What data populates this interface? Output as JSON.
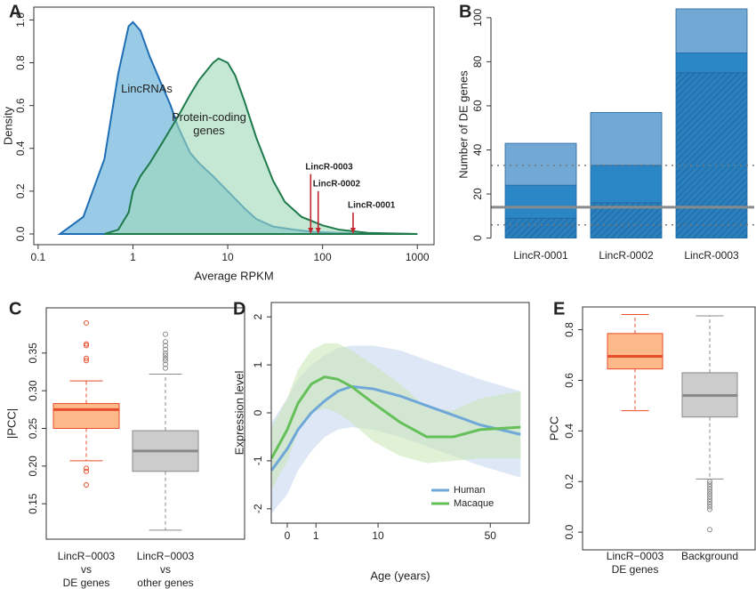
{
  "chart_data": [
    {
      "panel": "A",
      "type": "area",
      "x_label": "Average RPKM",
      "y_label": "Density",
      "frame": true,
      "x_scale": "log",
      "xlim": [
        0.09,
        1500
      ],
      "ylim": [
        -0.05,
        1.06
      ],
      "xticks": [
        0.1,
        1,
        10,
        100,
        1000
      ],
      "yticks": [
        {
          "value": 0,
          "label": "0.0"
        },
        0.2,
        0.4,
        0.6,
        0.8,
        {
          "value": 1,
          "label": "1.0"
        }
      ],
      "series": [
        {
          "name": "LincRNAs",
          "color": "#1f6eb5",
          "fill": "#8ec5e3",
          "x": [
            0.17,
            0.3,
            0.5,
            0.7,
            0.9,
            1,
            1.2,
            1.5,
            2,
            2.5,
            3,
            4,
            5,
            7,
            10,
            15,
            20,
            30,
            50,
            80,
            150,
            300,
            1000
          ],
          "values": [
            0,
            0.08,
            0.35,
            0.75,
            0.97,
            0.99,
            0.95,
            0.83,
            0.7,
            0.6,
            0.5,
            0.38,
            0.33,
            0.27,
            0.2,
            0.12,
            0.07,
            0.035,
            0.02,
            0.01,
            0.005,
            0.002,
            0
          ]
        },
        {
          "name": "Protein-coding genes",
          "color": "#1e7a4a",
          "fill": "#9fd8b8",
          "x": [
            0.5,
            0.7,
            0.9,
            1,
            1.2,
            1.5,
            2,
            3,
            4,
            5,
            7,
            8,
            10,
            12,
            15,
            20,
            30,
            40,
            60,
            100,
            150,
            300,
            1000
          ],
          "values": [
            0,
            0.02,
            0.1,
            0.2,
            0.27,
            0.33,
            0.42,
            0.55,
            0.65,
            0.72,
            0.8,
            0.82,
            0.8,
            0.74,
            0.62,
            0.45,
            0.25,
            0.15,
            0.08,
            0.04,
            0.02,
            0.005,
            0
          ]
        }
      ],
      "annotations": [
        {
          "text": "LincR-0003",
          "x": 75,
          "y": 0.28
        },
        {
          "text": "LincR-0002",
          "x": 90,
          "y": 0.2
        },
        {
          "text": "LincR-0001",
          "x": 210,
          "y": 0.1
        }
      ]
    },
    {
      "panel": "B",
      "type": "stacked_bar",
      "y_label": "Number of DE genes",
      "ylim": [
        -3,
        106
      ],
      "yticks": [
        0,
        20,
        40,
        60,
        80,
        100
      ],
      "categories": [
        "LincR-0001",
        "LincR-0002",
        "LincR-0003"
      ],
      "series": [
        {
          "color": "#2a7fbe",
          "pattern": "hatch",
          "values": [
            9,
            16,
            75
          ]
        },
        {
          "color": "#2a86c4",
          "values": [
            15,
            17,
            9
          ]
        },
        {
          "color": "#72a8d4",
          "values": [
            19,
            24,
            20
          ]
        }
      ],
      "reference_lines": [
        {
          "value": 14,
          "style": "solid"
        },
        {
          "value": 33,
          "style": "dotted"
        },
        {
          "value": 6,
          "style": "dotted"
        }
      ]
    },
    {
      "panel": "C",
      "type": "box",
      "y_label": "|PCC|",
      "frame": true,
      "ylim": [
        0.103,
        0.41
      ],
      "yticks": [
        0.15,
        {
          "value": 0.2,
          "label": "0.20"
        },
        0.25,
        {
          "value": 0.3,
          "label": "0.30"
        },
        0.35
      ],
      "categories": [
        [
          "LincR−0003",
          "vs",
          "DE genes"
        ],
        [
          "LincR−0003",
          "vs",
          "other genes"
        ]
      ],
      "boxes": [
        {
          "color": "#fdb98a",
          "stroke": "#e84c2a",
          "min": 0.207,
          "q1": 0.25,
          "median": 0.275,
          "q3": 0.283,
          "max": 0.313,
          "outliers": [
            0.39,
            0.362,
            0.36,
            0.343,
            0.34,
            0.197,
            0.193,
            0.175
          ]
        },
        {
          "color": "#cccccc",
          "stroke": "#8a8a8a",
          "min": 0.115,
          "q1": 0.193,
          "median": 0.22,
          "q3": 0.247,
          "max": 0.322,
          "outliers": [
            0.33,
            0.335,
            0.34,
            0.343,
            0.347,
            0.35,
            0.355,
            0.36,
            0.365,
            0.375
          ]
        }
      ]
    },
    {
      "panel": "D",
      "type": "line_band",
      "x_label": "Age (years)",
      "y_label": "Expression level",
      "frame": true,
      "x_scale": "sqrt",
      "xlim": [
        -0.31,
        71
      ],
      "ylim": [
        -2.3,
        2.3
      ],
      "xticks": [
        0,
        1,
        10,
        50
      ],
      "yticks": [
        -2,
        -1,
        0,
        1,
        2
      ],
      "legend": "bottom-right",
      "x": [
        -0.3,
        0,
        0.14,
        0.7,
        1.7,
        3.1,
        5,
        9,
        15.5,
        23.6,
        33.5,
        45,
        66
      ],
      "series": [
        {
          "name": "Human",
          "color": "#6fa8d8",
          "band_color": "#c3d3ec",
          "values": [
            -1.2,
            -0.75,
            -0.35,
            0,
            0.25,
            0.45,
            0.55,
            0.5,
            0.35,
            0.15,
            -0.05,
            -0.25,
            -0.45
          ],
          "lower": [
            -2.1,
            -1.7,
            -1.2,
            -0.8,
            -0.5,
            -0.35,
            -0.3,
            -0.35,
            -0.5,
            -0.7,
            -0.9,
            -1.1,
            -1.35
          ],
          "upper": [
            -0.2,
            0.3,
            0.7,
            1.0,
            1.2,
            1.35,
            1.4,
            1.4,
            1.3,
            1.1,
            0.9,
            0.7,
            0.45
          ]
        },
        {
          "name": "Macaque",
          "color": "#66c05a",
          "band_color": "#c8e6b4",
          "values": [
            -0.95,
            -0.35,
            0.2,
            0.6,
            0.75,
            0.7,
            0.55,
            0.2,
            -0.2,
            -0.5,
            -0.5,
            -0.35,
            -0.3
          ],
          "lower": [
            -1.6,
            -1.0,
            -0.4,
            0,
            0.1,
            0,
            -0.2,
            -0.6,
            -0.9,
            -1.05,
            -1.0,
            -0.95,
            -0.95
          ],
          "upper": [
            -0.3,
            0.3,
            0.9,
            1.3,
            1.45,
            1.45,
            1.3,
            1.0,
            0.6,
            0.1,
            0.05,
            0.3,
            0.45
          ]
        }
      ]
    },
    {
      "panel": "E",
      "type": "box",
      "y_label": "PCC",
      "frame": true,
      "ylim": [
        -0.07,
        0.89
      ],
      "yticks": [
        {
          "value": 0,
          "label": "0.0"
        },
        0.2,
        0.4,
        0.6,
        0.8
      ],
      "categories": [
        [
          "LincR−0003",
          "DE genes"
        ],
        [
          "Background"
        ]
      ],
      "boxes": [
        {
          "color": "#fdb98a",
          "stroke": "#e84c2a",
          "min": 0.48,
          "q1": 0.645,
          "median": 0.695,
          "q3": 0.785,
          "max": 0.86,
          "outliers": []
        },
        {
          "color": "#cccccc",
          "stroke": "#8a8a8a",
          "min": 0.21,
          "q1": 0.455,
          "median": 0.54,
          "q3": 0.63,
          "max": 0.855,
          "outliers": [
            0.2,
            0.19,
            0.18,
            0.17,
            0.16,
            0.15,
            0.14,
            0.13,
            0.12,
            0.11,
            0.1,
            0.09,
            0.01
          ]
        }
      ]
    }
  ]
}
